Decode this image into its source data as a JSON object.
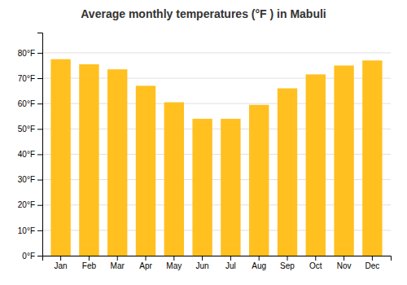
{
  "chart_data": {
    "type": "bar",
    "title": "Average monthly temperatures (°F ) in Mabuli",
    "categories": [
      "Jan",
      "Feb",
      "Mar",
      "Apr",
      "May",
      "Jun",
      "Jul",
      "Aug",
      "Sep",
      "Oct",
      "Nov",
      "Dec"
    ],
    "values": [
      77.5,
      75.5,
      73.5,
      67.0,
      60.5,
      54.0,
      54.0,
      59.5,
      66.0,
      71.5,
      75.0,
      77.0
    ],
    "color": "#FFC020",
    "ylim": [
      0,
      88
    ],
    "yticks": [
      {
        "value": 0,
        "label": "0°F"
      },
      {
        "value": 10,
        "label": "10°F"
      },
      {
        "value": 20,
        "label": "20°F"
      },
      {
        "value": 30,
        "label": "30°F"
      },
      {
        "value": 40,
        "label": "40°F"
      },
      {
        "value": 50,
        "label": "50°F"
      },
      {
        "value": 60,
        "label": "60°F"
      },
      {
        "value": 70,
        "label": "70°F"
      },
      {
        "value": 80,
        "label": "80°F"
      }
    ],
    "grid": true
  }
}
